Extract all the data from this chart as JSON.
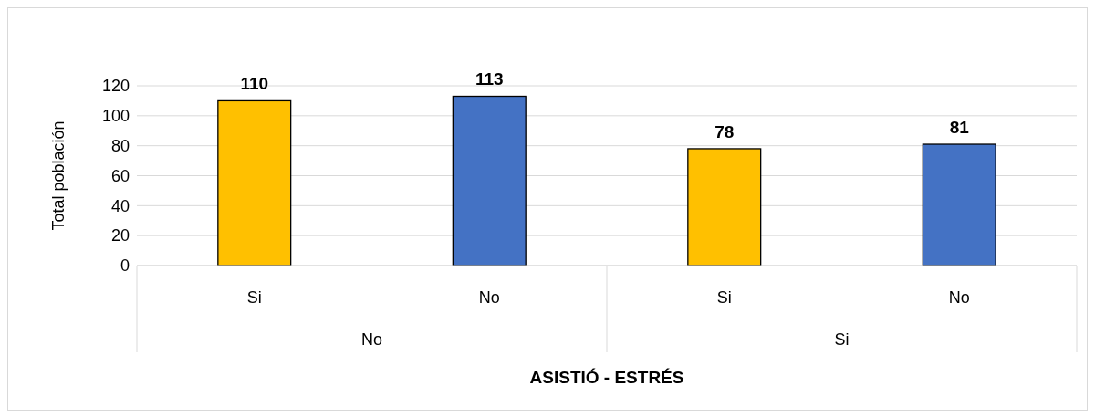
{
  "chart_data": {
    "type": "bar",
    "xlabel": "ASISTIÓ - ESTRÉS",
    "ylabel": "Total población",
    "categories": [
      "Si",
      "No",
      "Si",
      "No"
    ],
    "values": [
      110,
      113,
      78,
      81
    ],
    "colors": [
      "#ffc000",
      "#4472c4",
      "#ffc000",
      "#4472c4"
    ],
    "annotations": [
      "No",
      "Si"
    ],
    "ylim": [
      0,
      120
    ],
    "yticks": [
      0,
      20,
      40,
      60,
      80,
      100,
      120
    ],
    "grid": "y",
    "data_labels": true
  }
}
